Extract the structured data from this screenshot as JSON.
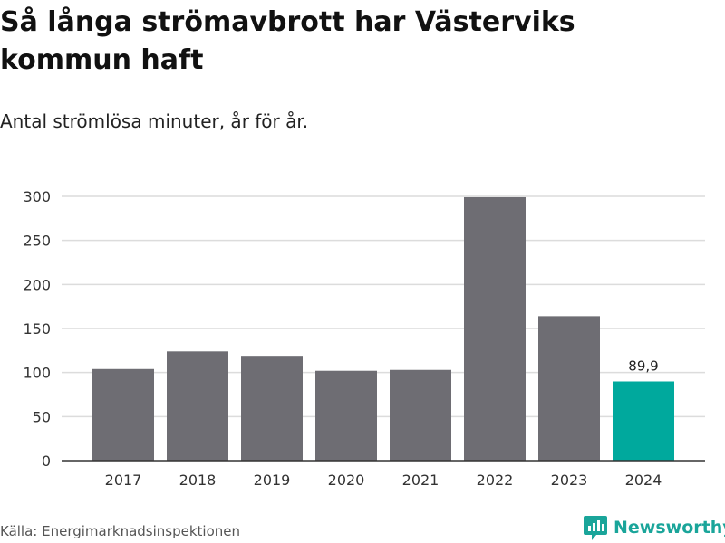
{
  "header": {
    "title": "Så långa strömavbrott har Västerviks kommun haft",
    "subtitle": "Antal strömlösa minuter, år för år."
  },
  "footer": {
    "source": "Källa: Energimarknadsinspektionen",
    "brand": "Newsworthy"
  },
  "colors": {
    "bar": "#6e6d73",
    "highlight": "#00a99d",
    "grid": "#dcdcdc",
    "axis": "#333333"
  },
  "chart_data": {
    "type": "bar",
    "title": "Så långa strömavbrott har Västerviks kommun haft",
    "subtitle": "Antal strömlösa minuter, år för år.",
    "xlabel": "",
    "ylabel": "",
    "categories": [
      "2017",
      "2018",
      "2019",
      "2020",
      "2021",
      "2022",
      "2023",
      "2024"
    ],
    "values": [
      104,
      124,
      119,
      102,
      103,
      299,
      164,
      89.9
    ],
    "highlight_index": 7,
    "data_labels": [
      {
        "index": 7,
        "text": "89,9"
      }
    ],
    "ylim": [
      0,
      300
    ],
    "yticks": [
      0,
      50,
      100,
      150,
      200,
      250,
      300
    ],
    "grid": true
  }
}
